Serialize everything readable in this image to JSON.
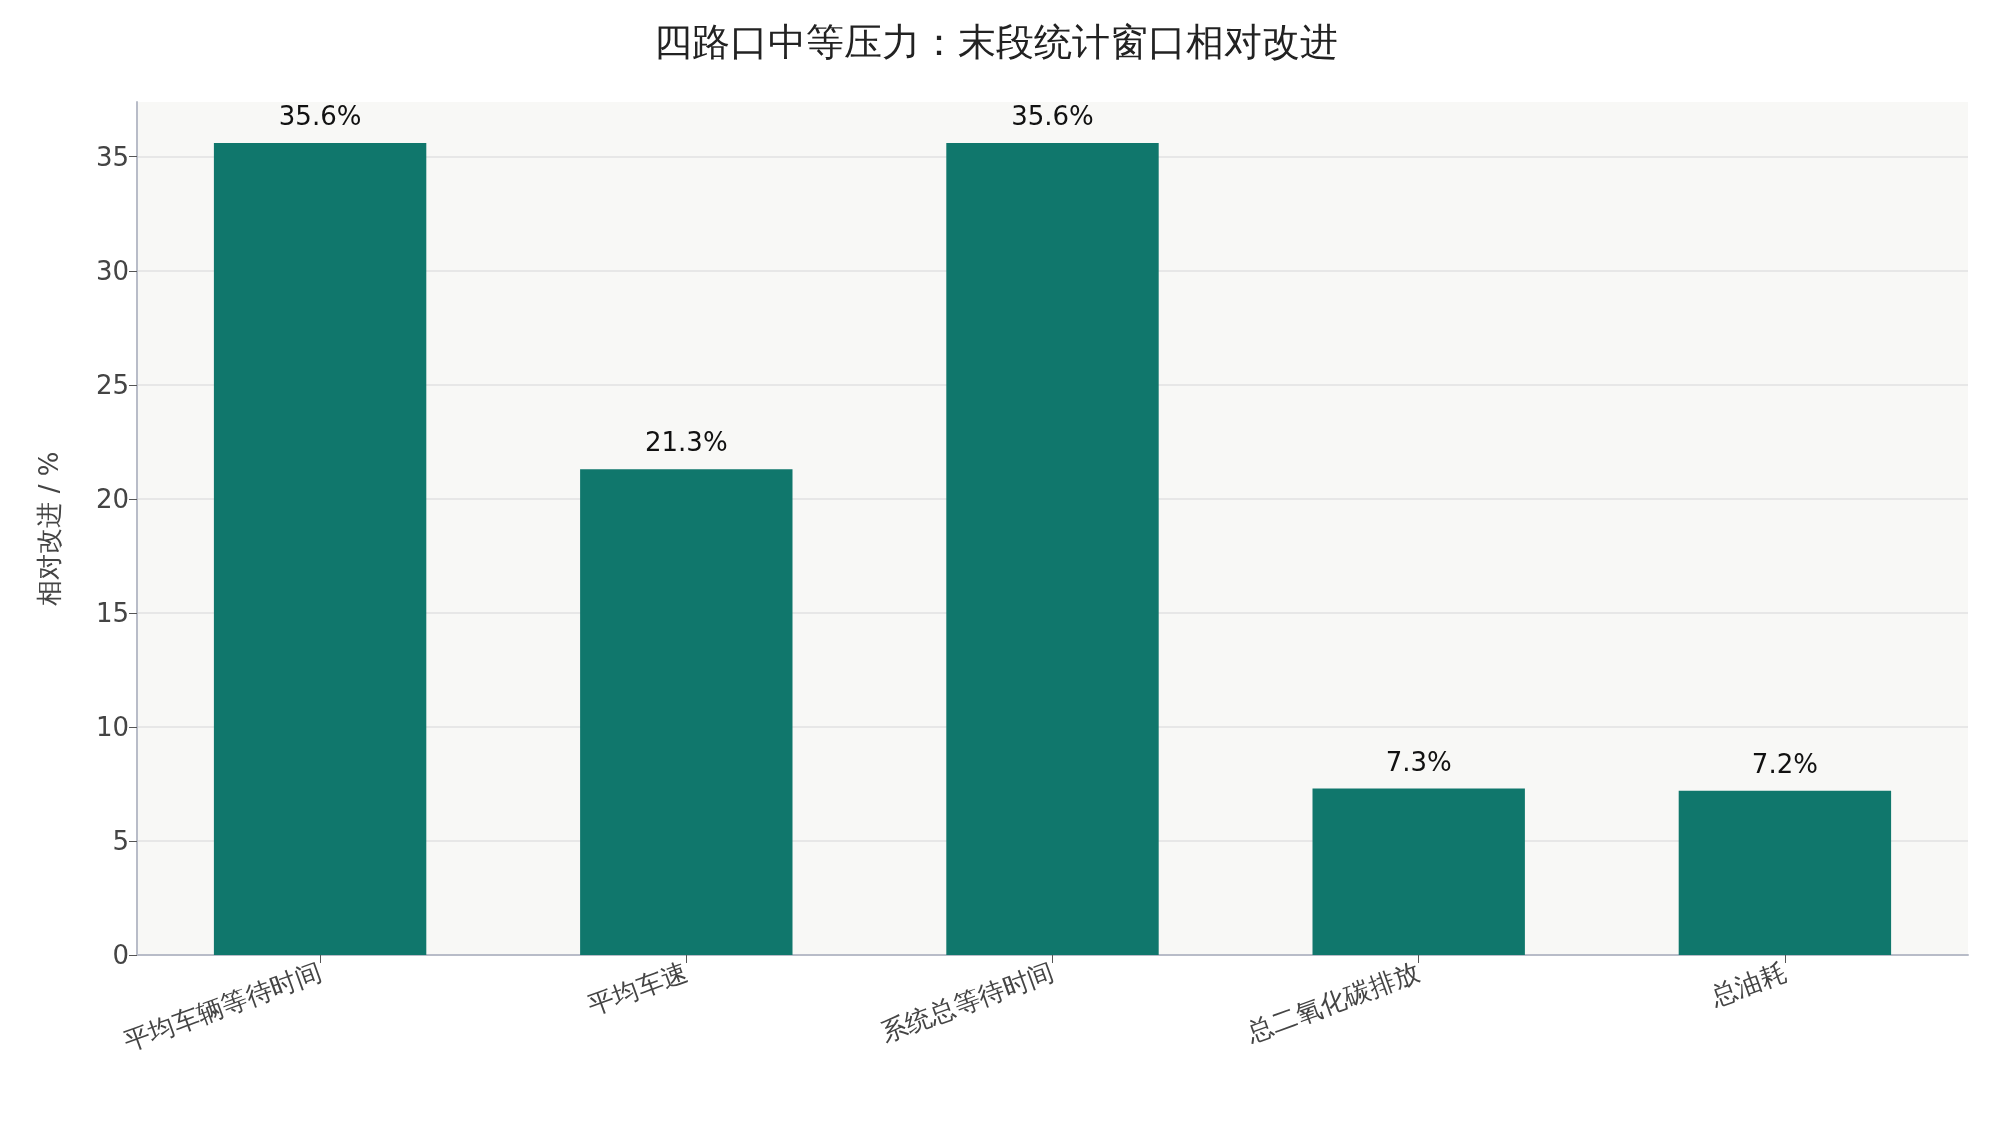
{
  "chart_data": {
    "type": "bar",
    "title": "四路口中等压力：末段统计窗口相对改进",
    "ylabel": "相对改进 / %",
    "categories": [
      "平均车辆等待时间",
      "平均车速",
      "系统总等待时间",
      "总二氧化碳排放",
      "总油耗"
    ],
    "values": [
      35.6,
      21.3,
      35.6,
      7.3,
      7.2
    ],
    "value_labels": [
      "35.6%",
      "21.3%",
      "35.6%",
      "7.3%",
      "7.2%"
    ],
    "color": "#10776c",
    "ylim": [
      0,
      37.4
    ],
    "yticks": [
      0,
      5,
      10,
      15,
      20,
      25,
      30,
      35
    ],
    "grid": "y"
  }
}
